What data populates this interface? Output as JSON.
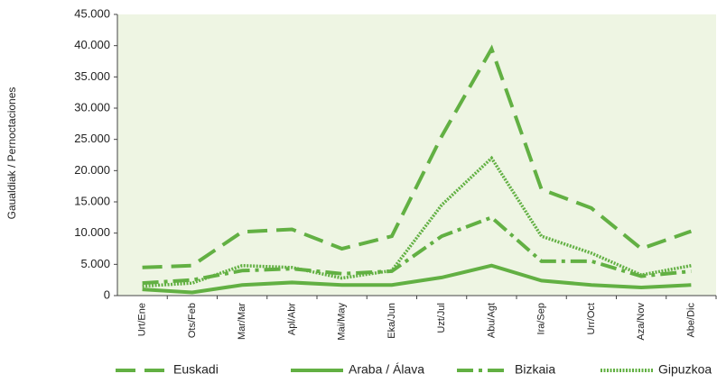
{
  "chart_data": {
    "type": "line",
    "y_label": "Gaualdiak / Pernoctaciones",
    "categories": [
      "Urt/Ene",
      "Ots/Feb",
      "Mar/Mar",
      "Apl/Abr",
      "Mai/May",
      "Eka/Jun",
      "Uzt/Jul",
      "Abu/Agt",
      "Ira/Sep",
      "Urr/Oct",
      "Aza/Nov",
      "Abe/Dic"
    ],
    "series": [
      {
        "name": "Euskadi",
        "color": "#62b043",
        "style": "dashed",
        "values": [
          4500,
          4800,
          10200,
          10600,
          7500,
          9500,
          25500,
          39500,
          17000,
          14000,
          7500,
          10300
        ]
      },
      {
        "name": "Araba / Álava",
        "color": "#62b043",
        "style": "solid",
        "values": [
          1000,
          500,
          1700,
          2100,
          1700,
          1700,
          2900,
          4800,
          2400,
          1700,
          1300,
          1700
        ]
      },
      {
        "name": "Bizkaia",
        "color": "#62b043",
        "style": "dashdot",
        "values": [
          2000,
          2500,
          4000,
          4300,
          3500,
          3900,
          9500,
          12500,
          5500,
          5500,
          3100,
          3900
        ]
      },
      {
        "name": "Gipuzkoa",
        "color": "#62b043",
        "style": "dotted",
        "values": [
          1500,
          2000,
          4800,
          4500,
          2800,
          4000,
          14500,
          22000,
          9500,
          6800,
          3300,
          4800
        ]
      }
    ],
    "ylim": [
      0,
      45000
    ],
    "yticks": [
      0,
      {
        "value": 5000,
        "label": "5.000"
      },
      {
        "value": 10000,
        "label": "10.000"
      },
      {
        "value": 15000,
        "label": "15.000"
      },
      {
        "value": 20000,
        "label": "20.000"
      },
      {
        "value": 25000,
        "label": "25.000"
      },
      {
        "value": 30000,
        "label": "30.000"
      },
      {
        "value": 35000,
        "label": "35.000"
      },
      {
        "value": 40000,
        "label": "40.000"
      },
      {
        "value": 45000,
        "label": "45.000"
      }
    ],
    "plot_background": "#eef5e3",
    "legend": "bottom"
  }
}
